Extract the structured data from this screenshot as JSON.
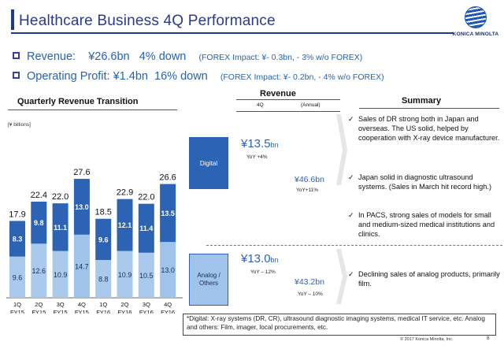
{
  "header": {
    "title": "Healthcare Business 4Q Performance",
    "logo_text": "KONICA MINOLTA"
  },
  "bullets": [
    {
      "label": "Revenue:",
      "value": "¥26.6bn",
      "change": "4% down",
      "fx": "(FOREX Impact: ¥- 0.3bn, - 3% w/o FOREX)"
    },
    {
      "label": "Operating Profit:",
      "value": "¥1.4bn",
      "change": "16% down",
      "fx": "(FOREX Impact: ¥- 0.2bn, - 4% w/o FOREX)"
    }
  ],
  "chart_section": {
    "title": "Quarterly Revenue Transition",
    "unit": "[¥ billions]"
  },
  "chart_data": {
    "type": "bar",
    "stacked": true,
    "categories": [
      "1Q FY15",
      "2Q FY15",
      "3Q FY15",
      "4Q FY15",
      "1Q FY16",
      "2Q FY16",
      "3Q FY16",
      "4Q FY16"
    ],
    "category_lines": [
      [
        "1Q",
        "FY15"
      ],
      [
        "2Q",
        "FY15"
      ],
      [
        "3Q",
        "FY15"
      ],
      [
        "4Q",
        "FY15"
      ],
      [
        "1Q",
        "FY16"
      ],
      [
        "2Q",
        "FY16"
      ],
      [
        "3Q",
        "FY16"
      ],
      [
        "4Q",
        "FY16"
      ]
    ],
    "series": [
      {
        "name": "Analog / Others",
        "values": [
          9.6,
          12.6,
          10.9,
          14.7,
          8.8,
          10.9,
          10.5,
          13.0
        ]
      },
      {
        "name": "Digital",
        "values": [
          8.3,
          9.8,
          11.1,
          13.0,
          9.6,
          12.1,
          11.4,
          13.5
        ]
      }
    ],
    "totals": [
      17.9,
      22.4,
      22.0,
      27.6,
      18.5,
      22.9,
      22.0,
      26.6
    ],
    "highlighted_categories": [
      3,
      7
    ],
    "ylim": [
      0,
      30
    ],
    "colors": {
      "digital": "#2d63b5",
      "analog": "#a9caec",
      "digital_highlight": "#2d63b5",
      "analog_highlight": "#9fc3ea"
    }
  },
  "revenue": {
    "title": "Revenue",
    "col_4q": "4Q",
    "col_annual": "(Annual)",
    "digital": {
      "label": "Digital",
      "q4": "¥13.5",
      "q4_unit": "bn",
      "q4_yoy": "YoY +4%",
      "annual": "¥46.6bn",
      "annual_yoy": "YoY+11%"
    },
    "analog": {
      "label": "Analog / Others",
      "q4": "¥13.0",
      "q4_unit": "bn",
      "q4_yoy": "YoY – 12%",
      "annual": "¥43.2bn",
      "annual_yoy": "YoY – 10%"
    }
  },
  "summary": {
    "title": "Summary",
    "items": [
      "Sales of DR strong both in Japan and overseas. The US solid, helped by cooperation with X-ray device manufacturer.",
      "Japan solid in diagnostic ultrasound systems. (Sales in March hit record high.)",
      "In PACS, strong sales of models for small and medium-sized medical institutions and clinics.",
      "Declining sales of analog products, primarily film."
    ]
  },
  "footnote": "*Digital: X-ray systems (DR, CR), ultrasound diagnostic imaging systems, medical IT service, etc.  Analog and others: Film, imager, local procurements, etc.",
  "footer": {
    "copyright": "© 2017 Konica Minolta, Inc.",
    "page": "8"
  }
}
